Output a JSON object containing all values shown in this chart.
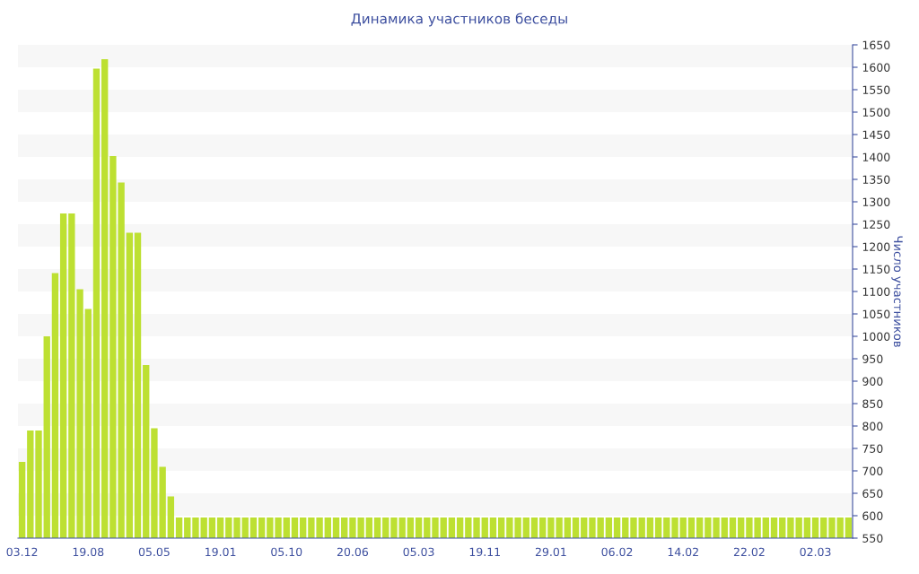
{
  "chart_data": {
    "type": "bar",
    "title": "Динамика участников беседы",
    "ylabel": "Число участников",
    "categories": [
      "03.12",
      null,
      null,
      null,
      null,
      null,
      null,
      null,
      "19.08",
      null,
      null,
      null,
      null,
      null,
      null,
      null,
      "05.05",
      null,
      null,
      null,
      null,
      null,
      null,
      null,
      "19.01",
      null,
      null,
      null,
      null,
      null,
      null,
      null,
      "05.10",
      null,
      null,
      null,
      null,
      null,
      null,
      null,
      "20.06",
      null,
      null,
      null,
      null,
      null,
      null,
      null,
      "05.03",
      null,
      null,
      null,
      null,
      null,
      null,
      null,
      "19.11",
      null,
      null,
      null,
      null,
      null,
      null,
      null,
      "29.01",
      null,
      null,
      null,
      null,
      null,
      null,
      null,
      "06.02",
      null,
      null,
      null,
      null,
      null,
      null,
      null,
      "14.02",
      null,
      null,
      null,
      null,
      null,
      null,
      null,
      "22.02",
      null,
      null,
      null,
      null,
      null,
      null,
      null,
      "02.03",
      null,
      null,
      null,
      null
    ],
    "values": [
      720,
      790,
      790,
      1000,
      1141,
      1274,
      1274,
      1105,
      1061,
      1597,
      1618,
      1402,
      1343,
      1231,
      1231,
      936,
      795,
      709,
      643,
      596,
      596,
      596,
      596,
      596,
      596,
      596,
      596,
      596,
      596,
      596,
      596,
      596,
      596,
      596,
      596,
      596,
      596,
      596,
      596,
      596,
      596,
      596,
      596,
      596,
      596,
      596,
      596,
      596,
      596,
      596,
      596,
      596,
      596,
      596,
      596,
      596,
      596,
      596,
      596,
      596,
      596,
      596,
      596,
      596,
      596,
      596,
      596,
      596,
      596,
      596,
      596,
      596,
      596,
      596,
      596,
      596,
      596,
      596,
      596,
      596,
      596,
      596,
      596,
      596,
      596,
      596,
      596,
      596,
      596,
      596,
      596,
      596,
      596,
      596,
      596,
      596,
      596,
      596,
      596,
      596,
      596
    ],
    "color": "#bde032",
    "ylim": [
      550,
      1650
    ],
    "yticks": [
      550,
      600,
      650,
      700,
      750,
      800,
      850,
      900,
      950,
      1000,
      1050,
      1100,
      1150,
      1200,
      1250,
      1300,
      1350,
      1400,
      1450,
      1500,
      1550,
      1600,
      1650
    ],
    "legend": false
  }
}
